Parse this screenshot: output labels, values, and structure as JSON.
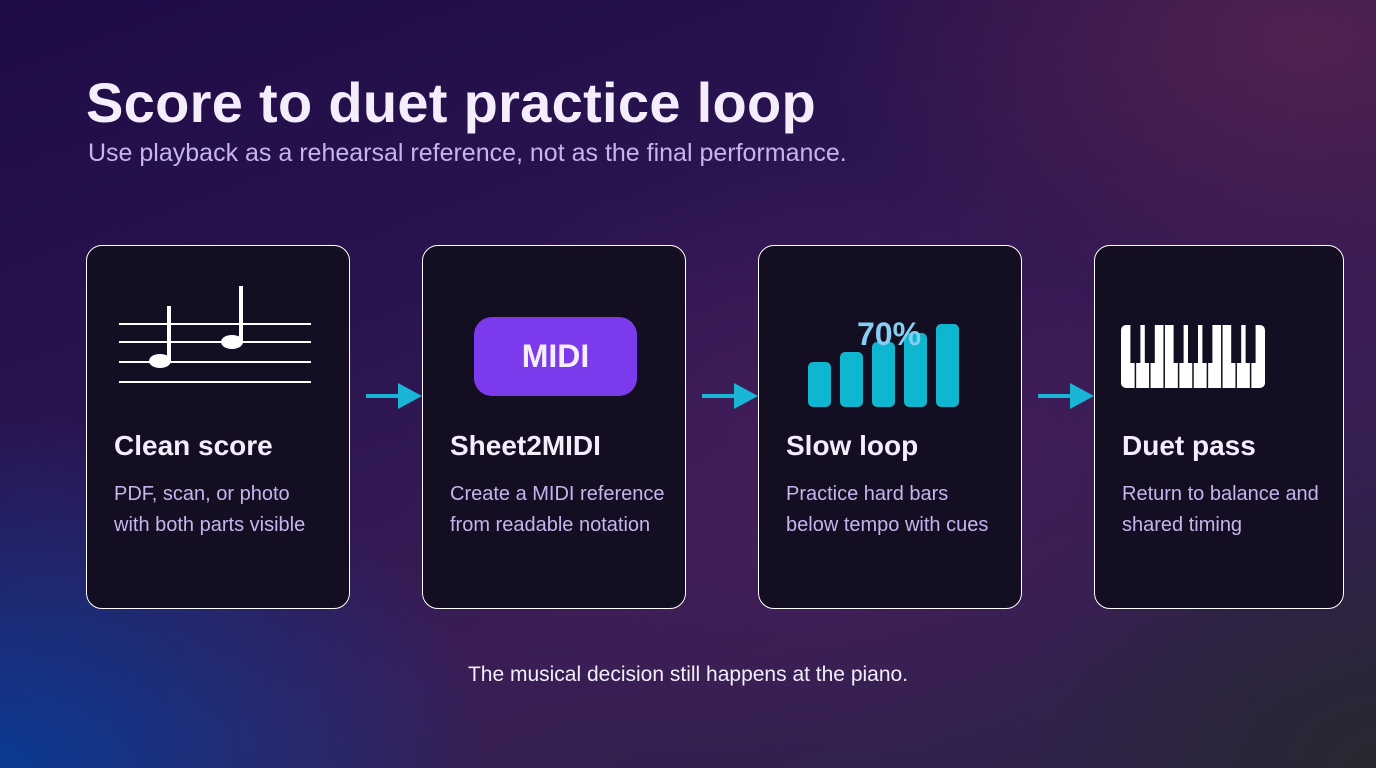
{
  "header": {
    "title": "Score to duet practice loop",
    "subtitle": "Use playback as a rehearsal reference, not as the final performance."
  },
  "steps": [
    {
      "title": "Clean score",
      "description": "PDF, scan, or photo with both parts visible",
      "icon": "sheet-music-icon"
    },
    {
      "title": "Sheet2MIDI",
      "description": "Create a MIDI reference from readable notation",
      "icon": "midi-badge-icon",
      "badge_label": "MIDI"
    },
    {
      "title": "Slow loop",
      "description": "Practice hard bars below tempo with cues",
      "icon": "tempo-bars-icon",
      "tempo_label": "70%"
    },
    {
      "title": "Duet pass",
      "description": "Return to balance and shared timing",
      "icon": "piano-keyboard-icon"
    }
  ],
  "footer": {
    "note": "The musical decision still happens at the piano."
  },
  "colors": {
    "accent_arrow": "#1ab5d4",
    "midi_badge": "#7c3aed",
    "tempo_bars": "#0fb6cf",
    "tempo_label": "#86cdf2",
    "card_background": "#130e21"
  }
}
